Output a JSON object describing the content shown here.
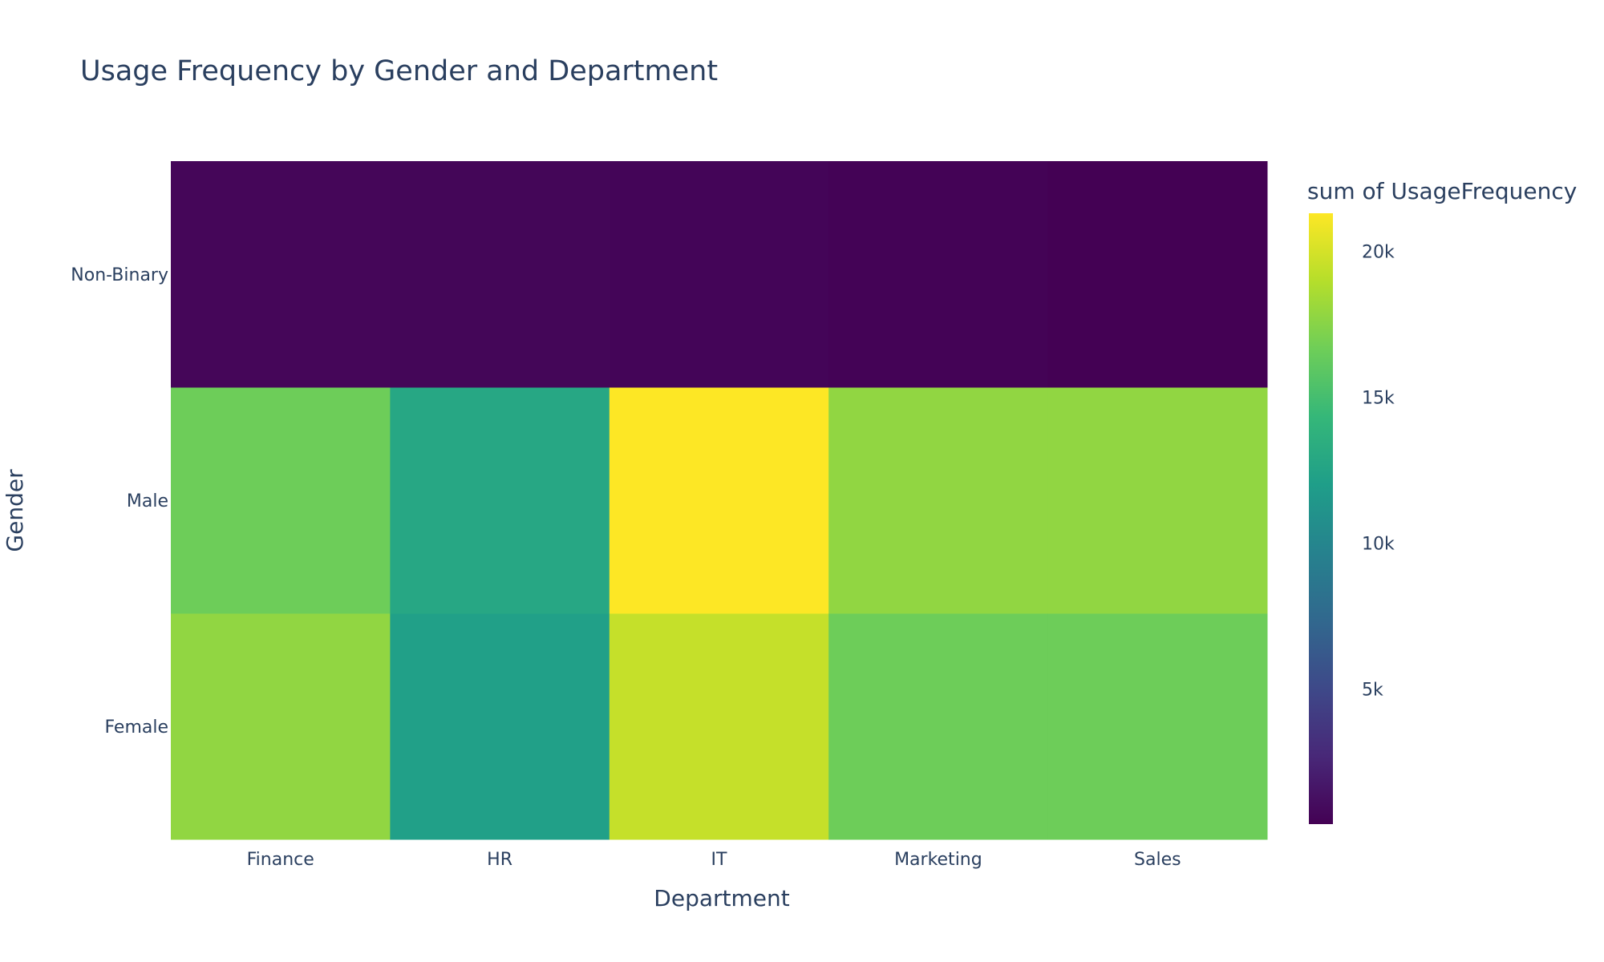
{
  "chart_data": {
    "type": "heatmap",
    "title": "Usage Frequency by Gender and Department",
    "xlabel": "Department",
    "ylabel": "Gender",
    "x": [
      "Finance",
      "HR",
      "IT",
      "Marketing",
      "Sales"
    ],
    "y": [
      "Female",
      "Male",
      "Non-Binary"
    ],
    "z": [
      [
        17800,
        12200,
        19500,
        16600,
        16600
      ],
      [
        16600,
        12800,
        21300,
        17800,
        17800
      ],
      [
        700,
        650,
        620,
        520,
        380
      ]
    ],
    "colorscale": "Viridis",
    "colorbar": {
      "title": "sum of UsageFrequency",
      "range": [
        380,
        21300
      ],
      "tickvals": [
        5000,
        10000,
        15000,
        20000
      ],
      "ticktext": [
        "5k",
        "10k",
        "15k",
        "20k"
      ]
    }
  }
}
